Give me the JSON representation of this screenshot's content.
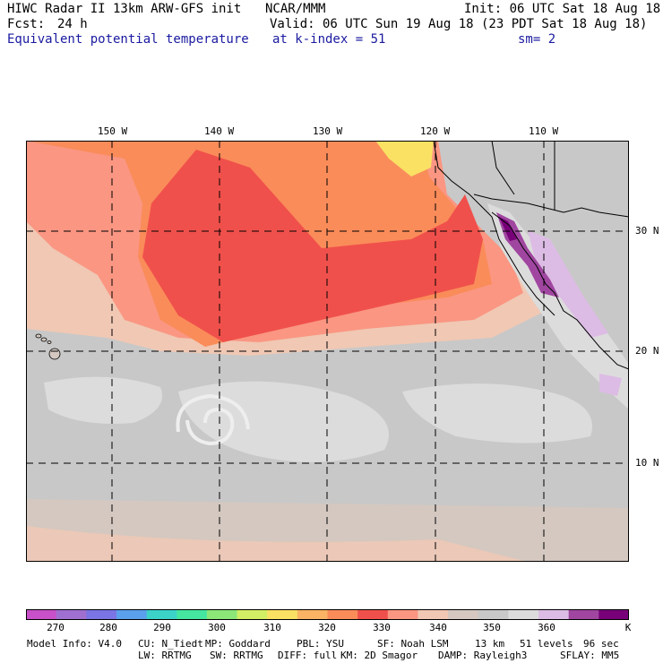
{
  "header": {
    "title": "HIWC Radar II 13km ARW-GFS init",
    "org": "NCAR/MMM",
    "init": "Init: 06 UTC Sat 18 Aug 18",
    "fcst_label": "Fcst:",
    "fcst_value": "24 h",
    "valid": "Valid: 06 UTC Sun 19 Aug 18 (23 PDT Sat 18 Aug 18)",
    "field": "Equivalent potential temperature",
    "level": "at k-index =  51",
    "smooth": "sm= 2"
  },
  "map": {
    "lon_ticks": [
      "150 W",
      "140 W",
      "130 W",
      "120 W",
      "110 W"
    ],
    "lat_ticks": [
      "30 N",
      "20 N",
      "10 N"
    ]
  },
  "colorbar": {
    "labels": [
      "270",
      "280",
      "290",
      "300",
      "310",
      "320",
      "330",
      "340",
      "350",
      "360"
    ],
    "unit": "K",
    "colors": [
      "#c850c8",
      "#a070d0",
      "#7a74e4",
      "#5aa0ec",
      "#3cd2c8",
      "#44e6a0",
      "#8ce678",
      "#d2ee64",
      "#fae164",
      "#fab464",
      "#fa8c5a",
      "#f0504b",
      "#fa9682",
      "#f0c8b4",
      "#d4c8c0",
      "#c8c8c8",
      "#dcdcdc",
      "#dcbce4",
      "#a046a0",
      "#780078"
    ]
  },
  "model_info": {
    "line1": [
      "Model Info: V4.0",
      "CU: N_Tiedt",
      "MP: Goddard",
      "PBL: YSU",
      "SF: Noah LSM",
      "13 km",
      "51 levels",
      "96 sec"
    ],
    "line2": [
      "LW: RRTMG",
      "SW: RRTMG",
      "DIFF: full",
      "KM: 2D Smagor",
      "DAMP: Rayleigh3",
      "SFLAY: MM5"
    ]
  }
}
